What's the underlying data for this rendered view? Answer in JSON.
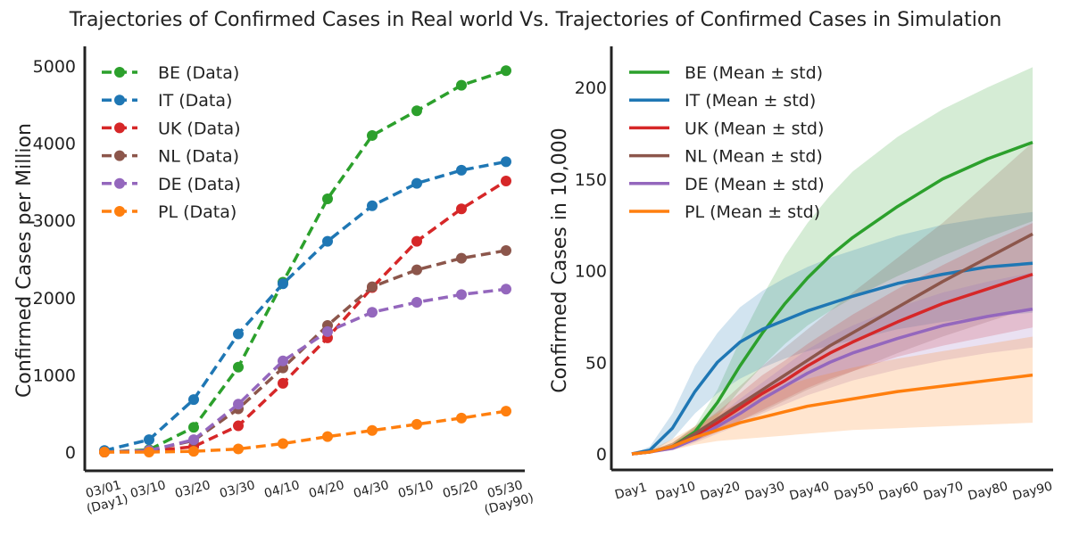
{
  "figure": {
    "title": "Trajectories of Confirmed Cases in Real world  Vs. Trajectories of Confirmed Cases in Simulation"
  },
  "chart_data": [
    {
      "type": "line",
      "style": "dashed-markers",
      "xlabel": "",
      "ylabel": "Confirmed Cases per Million",
      "x": [
        "03/01\n(Day1)",
        "03/10",
        "03/20",
        "03/30",
        "04/10",
        "04/20",
        "04/30",
        "05/10",
        "05/20",
        "05/30\n(Day90)"
      ],
      "ylim": [
        -200,
        5200
      ],
      "yticks": [
        0,
        1000,
        2000,
        3000,
        4000,
        5000
      ],
      "legend_position": "top-left",
      "grid": false,
      "series": [
        {
          "name": "BE (Data)",
          "color": "#2ca02c",
          "values": [
            0,
            30,
            320,
            1100,
            2200,
            3280,
            4100,
            4420,
            4750,
            4940
          ]
        },
        {
          "name": "IT (Data)",
          "color": "#1f77b4",
          "values": [
            20,
            160,
            680,
            1530,
            2180,
            2730,
            3190,
            3480,
            3650,
            3760
          ]
        },
        {
          "name": "UK (Data)",
          "color": "#d62728",
          "values": [
            0,
            10,
            70,
            340,
            890,
            1480,
            2130,
            2730,
            3150,
            3510
          ]
        },
        {
          "name": "NL (Data)",
          "color": "#8c564b",
          "values": [
            0,
            20,
            150,
            560,
            1090,
            1640,
            2140,
            2360,
            2510,
            2610
          ]
        },
        {
          "name": "DE (Data)",
          "color": "#9467bd",
          "values": [
            0,
            20,
            160,
            620,
            1180,
            1560,
            1810,
            1940,
            2040,
            2110
          ]
        },
        {
          "name": "PL (Data)",
          "color": "#ff7f0e",
          "values": [
            0,
            0,
            10,
            40,
            110,
            200,
            280,
            360,
            440,
            530
          ]
        }
      ]
    },
    {
      "type": "line",
      "style": "mean-with-std-band",
      "xlabel": "",
      "ylabel": "Confirmed Cases in 10,000",
      "xtick_labels": [
        "Day1",
        "Day10",
        "Day20",
        "Day30",
        "Day40",
        "Day50",
        "Day60",
        "Day70",
        "Day80",
        "Day90"
      ],
      "x": [
        1,
        5,
        10,
        15,
        20,
        25,
        30,
        35,
        40,
        45,
        50,
        60,
        70,
        80,
        90
      ],
      "ylim": [
        -8,
        222
      ],
      "yticks": [
        0,
        50,
        100,
        150,
        200
      ],
      "legend_position": "top-left",
      "grid": false,
      "series": [
        {
          "name": "BE (Mean ± std)",
          "color": "#2ca02c",
          "mean": [
            0,
            1,
            4,
            12,
            28,
            48,
            66,
            82,
            96,
            108,
            118,
            135,
            150,
            161,
            170
          ],
          "lower": [
            0,
            0.5,
            3,
            10,
            20,
            35,
            48,
            60,
            70,
            78,
            85,
            97,
            108,
            118,
            127
          ],
          "upper": [
            0,
            1.5,
            6,
            15,
            35,
            62,
            86,
            108,
            126,
            141,
            154,
            173,
            188,
            200,
            211
          ]
        },
        {
          "name": "IT (Mean ± std)",
          "color": "#1f77b4",
          "mean": [
            0,
            2,
            14,
            34,
            50,
            61,
            68,
            73,
            78,
            82,
            86,
            93,
            98,
            102,
            104
          ],
          "lower": [
            0,
            0.5,
            8,
            22,
            33,
            41,
            47,
            52,
            56,
            59,
            62,
            68,
            72,
            75,
            77
          ],
          "upper": [
            0,
            4,
            22,
            48,
            66,
            80,
            89,
            96,
            102,
            107,
            111,
            119,
            125,
            129,
            132
          ]
        },
        {
          "name": "UK (Mean ± std)",
          "color": "#d62728",
          "mean": [
            0,
            1,
            4,
            10,
            17,
            25,
            33,
            40,
            48,
            55,
            61,
            72,
            82,
            90,
            98
          ],
          "lower": [
            0,
            0.5,
            3,
            7,
            12,
            18,
            24,
            30,
            36,
            41,
            45,
            53,
            59,
            64,
            69
          ],
          "upper": [
            0,
            1.5,
            6,
            14,
            23,
            33,
            43,
            51,
            60,
            68,
            76,
            90,
            103,
            115,
            126
          ]
        },
        {
          "name": "NL (Mean ± std)",
          "color": "#8c564b",
          "mean": [
            0,
            1,
            4,
            11,
            19,
            27,
            35,
            43,
            51,
            59,
            66,
            80,
            94,
            107,
            120
          ],
          "lower": [
            0,
            0.5,
            3,
            7,
            12,
            18,
            23,
            29,
            35,
            40,
            45,
            55,
            64,
            72,
            80
          ],
          "upper": [
            0,
            1.5,
            6,
            15,
            26,
            37,
            48,
            58,
            68,
            78,
            88,
            107,
            126,
            148,
            170
          ]
        },
        {
          "name": "DE (Mean ± std)",
          "color": "#9467bd",
          "mean": [
            0,
            1,
            3,
            8,
            15,
            22,
            30,
            37,
            44,
            50,
            55,
            63,
            70,
            75,
            79
          ],
          "lower": [
            0,
            0.5,
            2,
            6,
            11,
            16,
            22,
            27,
            32,
            36,
            40,
            46,
            51,
            55,
            58
          ],
          "upper": [
            0,
            1.5,
            5,
            11,
            20,
            30,
            39,
            48,
            57,
            64,
            70,
            80,
            88,
            94,
            99
          ]
        },
        {
          "name": "PL (Mean ± std)",
          "color": "#ff7f0e",
          "mean": [
            0,
            1,
            4,
            9,
            13,
            17,
            20,
            23,
            26,
            28,
            30,
            34,
            37,
            40,
            43
          ],
          "lower": [
            0,
            0.5,
            2,
            5,
            7,
            8,
            9,
            10,
            11,
            12,
            13,
            14,
            15,
            16,
            17
          ],
          "upper": [
            0,
            2,
            8,
            15,
            22,
            28,
            33,
            37,
            41,
            44,
            47,
            52,
            56,
            60,
            64
          ]
        }
      ]
    }
  ]
}
